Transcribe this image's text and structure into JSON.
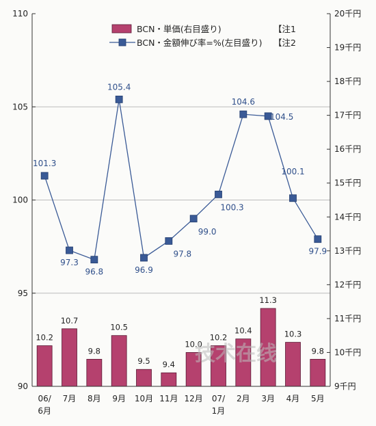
{
  "chart_data": {
    "type": "bar+line",
    "categories": [
      "06/\n6月",
      "7月",
      "8月",
      "9月",
      "10月",
      "11月",
      "12月",
      "07/\n1月",
      "2月",
      "3月",
      "4月",
      "5月"
    ],
    "series": [
      {
        "name": "BCN・単価(右目盛り)",
        "type": "bar",
        "axis": "right",
        "values": [
          10.2,
          10.7,
          9.8,
          10.5,
          9.5,
          9.4,
          10.0,
          10.2,
          10.4,
          11.3,
          10.3,
          9.8
        ],
        "labels": [
          "10.2",
          "10.7",
          "9.8",
          "10.5",
          "9.5",
          "9.4",
          "10.0",
          "10.2",
          "10.4",
          "11.3",
          "10.3",
          "9.8"
        ],
        "color": "#b5416e"
      },
      {
        "name": "BCN・金額伸び率=%(左目盛り)",
        "type": "line",
        "axis": "left",
        "values": [
          101.3,
          97.3,
          96.8,
          105.4,
          96.9,
          97.8,
          99.0,
          100.3,
          104.6,
          104.5,
          100.1,
          97.9
        ],
        "labels": [
          "101.3",
          "97.3",
          "96.8",
          "105.4",
          "96.9",
          "97.8",
          "99.0",
          "100.3",
          "104.6",
          "104.5",
          "100.1",
          "97.9"
        ],
        "color": "#3a5a96"
      }
    ],
    "legend": [
      {
        "label": "BCN・単価(右目盛り)",
        "note": "【注1"
      },
      {
        "label": "BCN・金額伸び率=%(左目盛り)",
        "note": "【注2"
      }
    ],
    "y_left": {
      "ticks": [
        "90",
        "95",
        "100",
        "105",
        "110"
      ],
      "ylim": [
        90,
        110
      ]
    },
    "y_right": {
      "ticks": [
        "9千円",
        "10千円",
        "11千円",
        "12千円",
        "13千円",
        "14千円",
        "15千円",
        "16千円",
        "17千円",
        "18千円",
        "19千円",
        "20千円"
      ],
      "ylim": [
        9,
        20
      ]
    },
    "grid": true,
    "legend_position": "top-right"
  },
  "watermark": {
    "text": "技术在线"
  },
  "colors": {
    "bar": "#b5416e",
    "line": "#3a5a96",
    "axis": "#333333",
    "grid": "#bbbbbb"
  }
}
